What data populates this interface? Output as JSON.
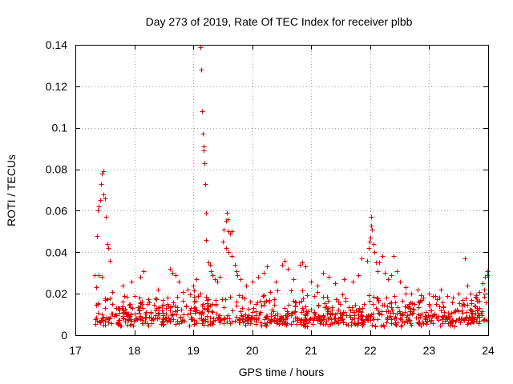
{
  "chart_data": {
    "type": "scatter",
    "title": "Day 273 of 2019, Rate Of TEC Index for receiver plbb",
    "xlabel": "GPS time / hours",
    "ylabel": "ROTI / TECUs",
    "xlim": [
      17,
      24
    ],
    "ylim": [
      0,
      0.14
    ],
    "x_ticks": [
      17,
      18,
      19,
      20,
      21,
      22,
      23,
      24
    ],
    "x_tick_labels": [
      "17",
      "18",
      "19",
      "20",
      "21",
      "22",
      "23",
      "24"
    ],
    "y_ticks": [
      0,
      0.02,
      0.04,
      0.06,
      0.08,
      0.1,
      0.12,
      0.14
    ],
    "y_tick_labels": [
      "0",
      "0.02",
      "0.04",
      "0.06",
      "0.08",
      "0.1",
      "0.12",
      "0.14"
    ],
    "grid": true,
    "marker": "plus",
    "color": "#e00000",
    "series": [
      {
        "name": "ROTI",
        "points": [
          [
            17.33,
            0.029
          ],
          [
            17.35,
            0.023
          ],
          [
            17.37,
            0.048
          ],
          [
            17.38,
            0.06
          ],
          [
            17.4,
            0.062
          ],
          [
            17.42,
            0.065
          ],
          [
            17.44,
            0.073
          ],
          [
            17.45,
            0.078
          ],
          [
            17.47,
            0.079
          ],
          [
            17.48,
            0.068
          ],
          [
            17.5,
            0.066
          ],
          [
            17.52,
            0.057
          ],
          [
            17.54,
            0.044
          ],
          [
            17.56,
            0.042
          ],
          [
            17.58,
            0.036
          ],
          [
            17.4,
            0.029
          ],
          [
            17.45,
            0.028
          ],
          [
            17.62,
            0.021
          ],
          [
            17.8,
            0.024
          ],
          [
            17.95,
            0.026
          ],
          [
            18.1,
            0.028
          ],
          [
            18.15,
            0.031
          ],
          [
            18.4,
            0.022
          ],
          [
            18.6,
            0.032
          ],
          [
            18.65,
            0.03
          ],
          [
            18.7,
            0.029
          ],
          [
            18.75,
            0.026
          ],
          [
            18.9,
            0.022
          ],
          [
            19.0,
            0.024
          ],
          [
            19.05,
            0.027
          ],
          [
            19.12,
            0.139
          ],
          [
            19.13,
            0.128
          ],
          [
            19.15,
            0.108
          ],
          [
            19.16,
            0.097
          ],
          [
            19.17,
            0.091
          ],
          [
            19.18,
            0.089
          ],
          [
            19.19,
            0.083
          ],
          [
            19.2,
            0.073
          ],
          [
            19.21,
            0.059
          ],
          [
            19.22,
            0.046
          ],
          [
            19.25,
            0.035
          ],
          [
            19.28,
            0.034
          ],
          [
            19.3,
            0.031
          ],
          [
            19.33,
            0.029
          ],
          [
            19.36,
            0.027
          ],
          [
            19.4,
            0.026
          ],
          [
            19.45,
            0.028
          ],
          [
            19.5,
            0.045
          ],
          [
            19.52,
            0.051
          ],
          [
            19.55,
            0.055
          ],
          [
            19.57,
            0.059
          ],
          [
            19.58,
            0.056
          ],
          [
            19.6,
            0.05
          ],
          [
            19.63,
            0.049
          ],
          [
            19.65,
            0.05
          ],
          [
            19.55,
            0.042
          ],
          [
            19.6,
            0.04
          ],
          [
            19.65,
            0.038
          ],
          [
            19.7,
            0.034
          ],
          [
            19.73,
            0.031
          ],
          [
            19.75,
            0.029
          ],
          [
            19.8,
            0.027
          ],
          [
            19.9,
            0.024
          ],
          [
            20.0,
            0.026
          ],
          [
            20.1,
            0.028
          ],
          [
            20.2,
            0.03
          ],
          [
            20.25,
            0.033
          ],
          [
            20.4,
            0.026
          ],
          [
            20.5,
            0.034
          ],
          [
            20.55,
            0.036
          ],
          [
            20.6,
            0.032
          ],
          [
            20.7,
            0.027
          ],
          [
            20.8,
            0.034
          ],
          [
            20.85,
            0.035
          ],
          [
            20.9,
            0.033
          ],
          [
            21.0,
            0.026
          ],
          [
            21.1,
            0.024
          ],
          [
            21.2,
            0.03
          ],
          [
            21.3,
            0.028
          ],
          [
            21.4,
            0.025
          ],
          [
            21.55,
            0.027
          ],
          [
            21.7,
            0.026
          ],
          [
            21.8,
            0.029
          ],
          [
            21.85,
            0.037
          ],
          [
            21.95,
            0.036
          ],
          [
            21.97,
            0.042
          ],
          [
            21.99,
            0.045
          ],
          [
            22.0,
            0.047
          ],
          [
            22.01,
            0.053
          ],
          [
            22.02,
            0.057
          ],
          [
            22.03,
            0.051
          ],
          [
            22.05,
            0.044
          ],
          [
            22.07,
            0.04
          ],
          [
            22.1,
            0.035
          ],
          [
            22.12,
            0.031
          ],
          [
            22.15,
            0.035
          ],
          [
            22.2,
            0.038
          ],
          [
            22.25,
            0.03
          ],
          [
            22.3,
            0.027
          ],
          [
            22.35,
            0.029
          ],
          [
            22.4,
            0.038
          ],
          [
            22.45,
            0.031
          ],
          [
            22.5,
            0.026
          ],
          [
            22.6,
            0.023
          ],
          [
            22.7,
            0.02
          ],
          [
            22.8,
            0.022
          ],
          [
            22.9,
            0.018
          ],
          [
            23.0,
            0.02
          ],
          [
            23.1,
            0.019
          ],
          [
            23.2,
            0.022
          ],
          [
            23.3,
            0.019
          ],
          [
            23.4,
            0.018
          ],
          [
            23.5,
            0.02
          ],
          [
            23.6,
            0.037
          ],
          [
            23.65,
            0.024
          ],
          [
            23.7,
            0.02
          ],
          [
            23.8,
            0.018
          ],
          [
            23.85,
            0.021
          ],
          [
            23.9,
            0.025
          ],
          [
            23.93,
            0.022
          ],
          [
            23.95,
            0.028
          ],
          [
            23.98,
            0.029
          ],
          [
            23.99,
            0.031
          ]
        ],
        "background_band": {
          "description": "dense cluster of samples between 17.33 and 24 h",
          "x_range": [
            17.33,
            24.0
          ],
          "y_range": [
            0.004,
            0.02
          ],
          "count": 900
        }
      }
    ]
  }
}
